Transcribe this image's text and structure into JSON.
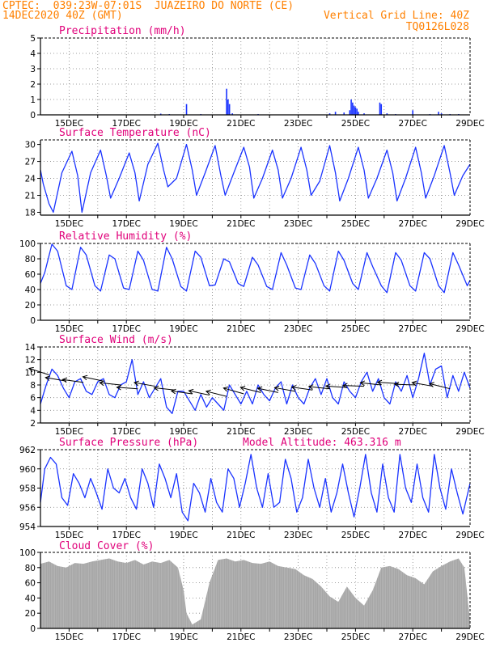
{
  "header": {
    "line1_left": "CPTEC:  039:23W-07:01S  JUAZEIRO DO NORTE (CE)",
    "line2_left": "14DEC2020 40Z (GMT)",
    "line2_right": "Vertical Grid Line: 40Z",
    "line3_right": "TQ0126L028"
  },
  "colors": {
    "header": "#ff8000",
    "title": "#e0007a",
    "series": "#1a33ff",
    "cloud": "#a6a6a6",
    "grid": "#808080"
  },
  "chart_data": [
    {
      "type": "bar",
      "title": "Precipitation (mm/h)",
      "ylim": [
        0,
        5
      ],
      "yticks": [
        "0",
        "1",
        "2",
        "3",
        "4",
        "5"
      ],
      "xticks": [
        "15DEC",
        "17DEC",
        "19DEC",
        "21DEC",
        "23DEC",
        "25DEC",
        "27DEC",
        "29DEC"
      ],
      "xlim_days": [
        14,
        29
      ],
      "x": [
        18.2,
        18.5,
        19.1,
        19.6,
        20.5,
        20.55,
        20.6,
        20.7,
        21.6,
        24.1,
        24.3,
        24.6,
        24.8,
        24.85,
        24.9,
        24.95,
        25.0,
        25.05,
        25.1,
        25.3,
        25.85,
        25.9,
        26.1,
        26.4,
        27.0,
        27.6,
        27.9,
        28.0,
        28.3,
        28.6
      ],
      "values": [
        0.08,
        0.05,
        0.7,
        0.05,
        1.7,
        1.0,
        0.7,
        0.1,
        0.05,
        0.1,
        0.2,
        0.15,
        0.3,
        1.0,
        0.8,
        0.6,
        0.5,
        0.4,
        0.2,
        0.1,
        0.8,
        0.7,
        0.1,
        0.05,
        0.3,
        0.05,
        0.2,
        0.1,
        0.05,
        0.05
      ]
    },
    {
      "type": "line",
      "title": "Surface Temperature (nC)",
      "ylim": [
        17.5,
        30.8
      ],
      "yticks": [
        "18",
        "21",
        "24",
        "27",
        "30"
      ],
      "xticks": [
        "15DEC",
        "17DEC",
        "19DEC",
        "21DEC",
        "23DEC",
        "25DEC",
        "27DEC",
        "29DEC"
      ],
      "xlim_days": [
        14,
        29
      ],
      "x": [
        14.0,
        14.1,
        14.3,
        14.45,
        14.75,
        15.1,
        15.3,
        15.45,
        15.75,
        16.1,
        16.3,
        16.45,
        16.75,
        17.1,
        17.3,
        17.45,
        17.75,
        18.1,
        18.3,
        18.45,
        18.75,
        19.1,
        19.3,
        19.45,
        19.75,
        20.1,
        20.3,
        20.45,
        20.75,
        21.1,
        21.3,
        21.45,
        21.75,
        22.1,
        22.3,
        22.45,
        22.75,
        23.1,
        23.3,
        23.45,
        23.75,
        24.1,
        24.3,
        24.45,
        24.75,
        25.1,
        25.3,
        25.45,
        25.75,
        26.1,
        26.3,
        26.45,
        26.75,
        27.1,
        27.3,
        27.45,
        27.75,
        28.1,
        28.3,
        28.45,
        28.75,
        29.0
      ],
      "values": [
        25.5,
        23.0,
        19.5,
        18.0,
        25.0,
        28.8,
        24.5,
        18.0,
        25.0,
        29.0,
        24.5,
        20.5,
        24.0,
        28.5,
        25.0,
        20.0,
        26.5,
        30.2,
        25.5,
        22.5,
        24.0,
        30.0,
        25.5,
        21.0,
        25.0,
        29.8,
        24.5,
        21.0,
        25.0,
        29.5,
        26.0,
        20.5,
        24.0,
        29.0,
        25.5,
        20.5,
        24.0,
        29.5,
        25.5,
        21.0,
        23.5,
        29.8,
        25.0,
        20.0,
        24.0,
        29.5,
        25.5,
        20.5,
        24.0,
        29.0,
        25.0,
        20.0,
        24.0,
        29.5,
        25.0,
        20.5,
        24.5,
        29.8,
        25.0,
        21.0,
        24.5,
        26.5
      ]
    },
    {
      "type": "line",
      "title": "Relative Humidity (%)",
      "ylim": [
        0,
        100
      ],
      "yticks": [
        "0",
        "20",
        "40",
        "60",
        "80",
        "100"
      ],
      "xticks": [
        "15DEC",
        "17DEC",
        "19DEC",
        "21DEC",
        "23DEC",
        "25DEC",
        "27DEC",
        "29DEC"
      ],
      "xlim_days": [
        14,
        29
      ],
      "x": [
        14.0,
        14.15,
        14.4,
        14.6,
        14.9,
        15.1,
        15.4,
        15.6,
        15.9,
        16.1,
        16.4,
        16.6,
        16.9,
        17.1,
        17.4,
        17.6,
        17.9,
        18.1,
        18.4,
        18.6,
        18.9,
        19.1,
        19.4,
        19.6,
        19.9,
        20.1,
        20.4,
        20.6,
        20.9,
        21.1,
        21.4,
        21.6,
        21.9,
        22.1,
        22.4,
        22.6,
        22.9,
        23.1,
        23.4,
        23.6,
        23.9,
        24.1,
        24.4,
        24.6,
        24.9,
        25.1,
        25.4,
        25.6,
        25.9,
        26.1,
        26.4,
        26.6,
        26.9,
        27.1,
        27.4,
        27.6,
        27.9,
        28.1,
        28.4,
        28.6,
        28.9,
        29.0
      ],
      "values": [
        48,
        62,
        99,
        90,
        45,
        40,
        95,
        85,
        45,
        38,
        85,
        80,
        42,
        40,
        90,
        78,
        40,
        38,
        95,
        80,
        44,
        38,
        90,
        82,
        45,
        46,
        80,
        76,
        48,
        44,
        82,
        72,
        44,
        40,
        88,
        72,
        42,
        40,
        85,
        74,
        45,
        38,
        90,
        78,
        48,
        40,
        88,
        70,
        45,
        36,
        88,
        78,
        45,
        38,
        88,
        80,
        45,
        36,
        88,
        72,
        45,
        52
      ]
    },
    {
      "type": "line",
      "title": "Surface Wind (m/s)",
      "ylim": [
        2,
        14
      ],
      "yticks": [
        "2",
        "4",
        "6",
        "8",
        "10",
        "12",
        "14"
      ],
      "xticks": [
        "15DEC",
        "17DEC",
        "19DEC",
        "21DEC",
        "23DEC",
        "25DEC",
        "27DEC",
        "29DEC"
      ],
      "xlim_days": [
        14,
        29
      ],
      "x": [
        14.0,
        14.2,
        14.4,
        14.6,
        14.8,
        15.0,
        15.2,
        15.4,
        15.6,
        15.8,
        16.0,
        16.2,
        16.4,
        16.6,
        16.8,
        17.0,
        17.2,
        17.4,
        17.6,
        17.8,
        18.0,
        18.2,
        18.4,
        18.6,
        18.8,
        19.0,
        19.2,
        19.4,
        19.6,
        19.8,
        20.0,
        20.2,
        20.4,
        20.6,
        20.8,
        21.0,
        21.2,
        21.4,
        21.6,
        21.8,
        22.0,
        22.2,
        22.4,
        22.6,
        22.8,
        23.0,
        23.2,
        23.4,
        23.6,
        23.8,
        24.0,
        24.2,
        24.4,
        24.6,
        24.8,
        25.0,
        25.2,
        25.4,
        25.6,
        25.8,
        26.0,
        26.2,
        26.4,
        26.6,
        26.8,
        27.0,
        27.2,
        27.4,
        27.6,
        27.8,
        28.0,
        28.2,
        28.4,
        28.6,
        28.8,
        29.0
      ],
      "values": [
        5.0,
        8.0,
        10.5,
        9.5,
        7.5,
        6.0,
        8.5,
        9.0,
        7.0,
        6.5,
        8.5,
        9.0,
        6.5,
        6.0,
        8.0,
        8.5,
        12.0,
        6.5,
        8.5,
        6.0,
        7.5,
        9.0,
        4.5,
        3.5,
        7.0,
        7.0,
        5.5,
        4.0,
        6.5,
        4.5,
        6.0,
        5.0,
        4.0,
        8.0,
        6.5,
        5.0,
        7.0,
        5.0,
        8.0,
        6.5,
        5.5,
        7.5,
        8.5,
        5.0,
        8.0,
        6.0,
        5.0,
        7.5,
        9.0,
        6.5,
        9.0,
        6.0,
        5.0,
        8.5,
        7.0,
        6.0,
        8.5,
        10.0,
        7.0,
        9.0,
        6.0,
        5.0,
        8.5,
        7.0,
        9.5,
        6.0,
        9.0,
        13.0,
        8.0,
        10.5,
        11.0,
        6.0,
        9.5,
        7.0,
        10.0,
        7.5
      ]
    },
    {
      "type": "line",
      "title": "Surface Pressure (hPa)",
      "subtitle": "Model Altitude: 463.316 m",
      "ylim": [
        954,
        962
      ],
      "yticks": [
        "954",
        "956",
        "958",
        "960",
        "962"
      ],
      "xticks": [
        "15DEC",
        "17DEC",
        "19DEC",
        "21DEC",
        "23DEC",
        "25DEC",
        "27DEC",
        "29DEC"
      ],
      "xlim_days": [
        14,
        29
      ],
      "x": [
        14.0,
        14.15,
        14.35,
        14.55,
        14.75,
        14.95,
        15.15,
        15.35,
        15.55,
        15.75,
        15.95,
        16.15,
        16.35,
        16.55,
        16.75,
        16.95,
        17.15,
        17.35,
        17.55,
        17.75,
        17.95,
        18.15,
        18.35,
        18.55,
        18.75,
        18.95,
        19.15,
        19.35,
        19.55,
        19.75,
        19.95,
        20.15,
        20.35,
        20.55,
        20.75,
        20.95,
        21.15,
        21.35,
        21.55,
        21.75,
        21.95,
        22.15,
        22.35,
        22.55,
        22.75,
        22.95,
        23.15,
        23.35,
        23.55,
        23.75,
        23.95,
        24.15,
        24.35,
        24.55,
        24.75,
        24.95,
        25.15,
        25.35,
        25.55,
        25.75,
        25.95,
        26.15,
        26.35,
        26.55,
        26.75,
        26.95,
        27.15,
        27.35,
        27.55,
        27.75,
        27.95,
        28.15,
        28.35,
        28.55,
        28.75,
        29.0
      ],
      "values": [
        956.5,
        960.0,
        961.2,
        960.5,
        957.0,
        956.2,
        959.5,
        958.5,
        957.0,
        959.0,
        957.5,
        955.8,
        960.0,
        958.0,
        957.5,
        959.0,
        957.0,
        955.8,
        960.0,
        958.5,
        956.0,
        960.5,
        959.0,
        957.0,
        959.5,
        955.5,
        954.6,
        958.5,
        957.5,
        955.5,
        959.0,
        956.5,
        955.5,
        960.0,
        959.0,
        956.0,
        958.5,
        961.5,
        958.0,
        956.0,
        959.5,
        956.0,
        956.5,
        961.0,
        959.0,
        955.5,
        957.0,
        961.0,
        958.0,
        956.0,
        959.0,
        955.5,
        957.5,
        960.5,
        957.5,
        955.0,
        958.0,
        961.5,
        957.5,
        955.5,
        960.5,
        957.0,
        955.5,
        961.5,
        958.0,
        956.5,
        960.5,
        957.0,
        955.5,
        961.5,
        958.0,
        955.8,
        960.0,
        957.5,
        955.3,
        958.5
      ]
    },
    {
      "type": "area",
      "title": "Cloud Cover (%)",
      "ylim": [
        0,
        100
      ],
      "yticks": [
        "0",
        "20",
        "40",
        "60",
        "80",
        "100"
      ],
      "xticks": [
        "15DEC",
        "17DEC",
        "19DEC",
        "21DEC",
        "23DEC",
        "25DEC",
        "27DEC",
        "29DEC"
      ],
      "xlim_days": [
        14,
        29
      ],
      "x": [
        14.0,
        14.3,
        14.6,
        14.9,
        15.2,
        15.5,
        15.8,
        16.1,
        16.4,
        16.7,
        17.0,
        17.3,
        17.6,
        17.9,
        18.2,
        18.5,
        18.8,
        19.0,
        19.1,
        19.3,
        19.6,
        19.9,
        20.2,
        20.5,
        20.8,
        21.1,
        21.4,
        21.7,
        22.0,
        22.3,
        22.6,
        22.9,
        23.2,
        23.5,
        23.8,
        24.1,
        24.4,
        24.7,
        25.0,
        25.3,
        25.6,
        25.9,
        26.2,
        26.5,
        26.8,
        27.1,
        27.4,
        27.7,
        28.0,
        28.3,
        28.6,
        28.8,
        29.0
      ],
      "values": [
        85,
        88,
        82,
        80,
        86,
        85,
        88,
        90,
        92,
        88,
        86,
        90,
        84,
        88,
        86,
        90,
        80,
        50,
        20,
        5,
        12,
        60,
        90,
        92,
        88,
        90,
        86,
        85,
        88,
        82,
        80,
        78,
        70,
        65,
        55,
        42,
        35,
        55,
        40,
        30,
        50,
        80,
        82,
        78,
        70,
        66,
        58,
        75,
        82,
        88,
        92,
        80,
        10
      ]
    }
  ]
}
